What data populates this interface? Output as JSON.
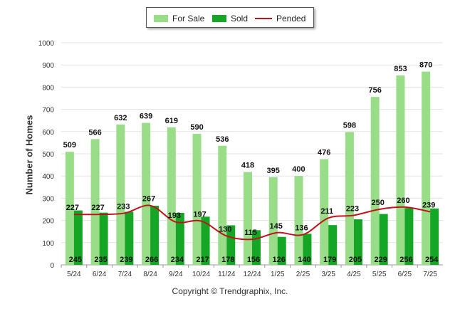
{
  "chart_data": {
    "type": "bar",
    "categories": [
      "5/24",
      "6/24",
      "7/24",
      "8/24",
      "9/24",
      "10/24",
      "11/24",
      "12/24",
      "1/25",
      "2/25",
      "3/25",
      "4/25",
      "5/25",
      "6/25",
      "7/25"
    ],
    "series": [
      {
        "name": "For Sale",
        "type": "bar",
        "color": "#99dd88",
        "values": [
          509,
          566,
          632,
          639,
          619,
          590,
          536,
          418,
          395,
          400,
          476,
          598,
          756,
          853,
          870
        ]
      },
      {
        "name": "Sold",
        "type": "bar",
        "color": "#16a626",
        "values": [
          245,
          235,
          239,
          266,
          234,
          217,
          178,
          156,
          126,
          140,
          179,
          205,
          229,
          256,
          254
        ]
      },
      {
        "name": "Pended",
        "type": "line",
        "color": "#c0141c",
        "values": [
          227,
          227,
          233,
          267,
          193,
          197,
          130,
          115,
          145,
          136,
          211,
          223,
          250,
          260,
          239
        ]
      }
    ],
    "xlabel": "",
    "ylabel": "Number of Homes",
    "ylim": [
      0,
      1000
    ],
    "yticks": [
      0,
      100,
      200,
      300,
      400,
      500,
      600,
      700,
      800,
      900,
      1000
    ],
    "grid": true,
    "legend": "top-center"
  },
  "legend": {
    "for_sale": "For Sale",
    "sold": "Sold",
    "pended": "Pended"
  },
  "footer": {
    "copyright": "Copyright © Trendgraphix, Inc."
  }
}
